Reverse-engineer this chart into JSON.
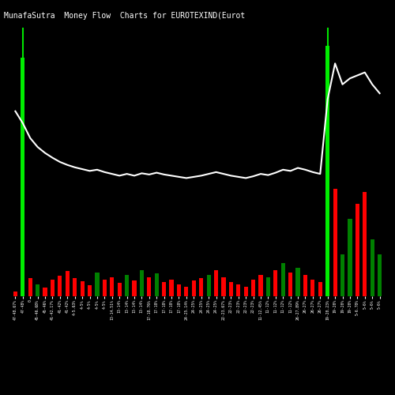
{
  "title": "MunafaSutra  Money Flow  Charts for EUROTEXIND",
  "title2": "(Eurot",
  "background_color": "#000000",
  "line_color": "#ffffff",
  "text_color": "#ffffff",
  "title_fontsize": 7,
  "tick_fontsize": 3.5,
  "n_bars": 50,
  "bar_heights": [
    8,
    400,
    30,
    20,
    15,
    28,
    35,
    42,
    30,
    25,
    18,
    40,
    28,
    32,
    22,
    36,
    26,
    44,
    32,
    38,
    24,
    28,
    20,
    16,
    26,
    30,
    36,
    44,
    32,
    24,
    20,
    16,
    28,
    36,
    32,
    44,
    56,
    40,
    48,
    36,
    28,
    24,
    420,
    180,
    70,
    130,
    155,
    175,
    95,
    70
  ],
  "bar_colors": [
    "red",
    "#00ee00",
    "red",
    "green",
    "red",
    "red",
    "red",
    "red",
    "red",
    "red",
    "red",
    "green",
    "red",
    "red",
    "red",
    "green",
    "red",
    "green",
    "red",
    "green",
    "red",
    "red",
    "red",
    "red",
    "red",
    "red",
    "green",
    "red",
    "red",
    "red",
    "red",
    "red",
    "red",
    "red",
    "green",
    "red",
    "green",
    "red",
    "green",
    "red",
    "red",
    "red",
    "#00ee00",
    "red",
    "green",
    "green",
    "red",
    "red",
    "green",
    "green"
  ],
  "line_values": [
    310,
    290,
    265,
    250,
    240,
    232,
    225,
    220,
    216,
    213,
    210,
    212,
    208,
    205,
    202,
    205,
    202,
    206,
    204,
    207,
    204,
    202,
    200,
    198,
    200,
    202,
    205,
    208,
    205,
    202,
    200,
    198,
    201,
    205,
    203,
    207,
    212,
    210,
    215,
    212,
    208,
    205,
    330,
    390,
    355,
    365,
    370,
    375,
    355,
    340
  ],
  "ylim_max": 450,
  "x_labels": [
    "47-48.67%",
    "47-48%",
    "0",
    "45-46.68%",
    "45-46%",
    "41-42.17%",
    "41-42%",
    "41-42%",
    "4-5.63%",
    "4-5%",
    "4-5%",
    "4-5%",
    "4-5%",
    "13-14.51%",
    "13-14%",
    "13-14%",
    "13-14%",
    "13-14%",
    "17-18.76%",
    "17-18%",
    "17-18%",
    "17-18%",
    "17-18%",
    "24-25.14%",
    "24-25%",
    "24-25%",
    "24-25%",
    "24-25%",
    "22-23.67%",
    "22-23%",
    "22-23%",
    "22-23%",
    "22-23%",
    "11-12.45%",
    "11-12%",
    "11-12%",
    "11-12%",
    "11-12%",
    "26-27.89%",
    "26-27%",
    "26-27%",
    "26-27%",
    "19-20.23%",
    "19-20%",
    "19-20%",
    "19-20%",
    "5-6.78%",
    "5-6%",
    "5-6%",
    "5-6%"
  ]
}
